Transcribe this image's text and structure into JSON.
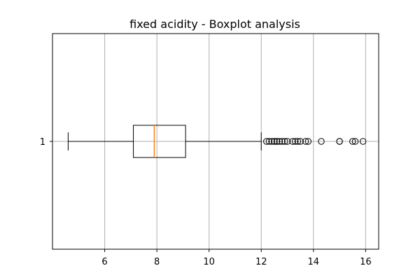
{
  "chart_data": {
    "type": "boxplot",
    "title": "fixed acidity - Boxplot analysis",
    "xlabel": "",
    "ylabel": "",
    "orientation": "horizontal",
    "xlim": [
      4.0,
      16.5
    ],
    "x_ticks": [
      6,
      8,
      10,
      12,
      14,
      16
    ],
    "y_ticks": [
      "1"
    ],
    "grid": true,
    "box": {
      "whisker_low": 4.6,
      "q1": 7.1,
      "median": 7.9,
      "q3": 9.1,
      "whisker_high": 12.0
    },
    "outliers": [
      12.2,
      12.3,
      12.4,
      12.5,
      12.5,
      12.6,
      12.6,
      12.7,
      12.8,
      12.9,
      13.0,
      13.2,
      13.3,
      13.4,
      13.5,
      13.7,
      13.8,
      14.3,
      15.0,
      15.0,
      15.5,
      15.6,
      15.9
    ],
    "colors": {
      "box": "#000000",
      "median": "#ff7f0e",
      "whisker": "#000000",
      "outlier": "#000000",
      "grid": "#b0b0b0"
    }
  }
}
